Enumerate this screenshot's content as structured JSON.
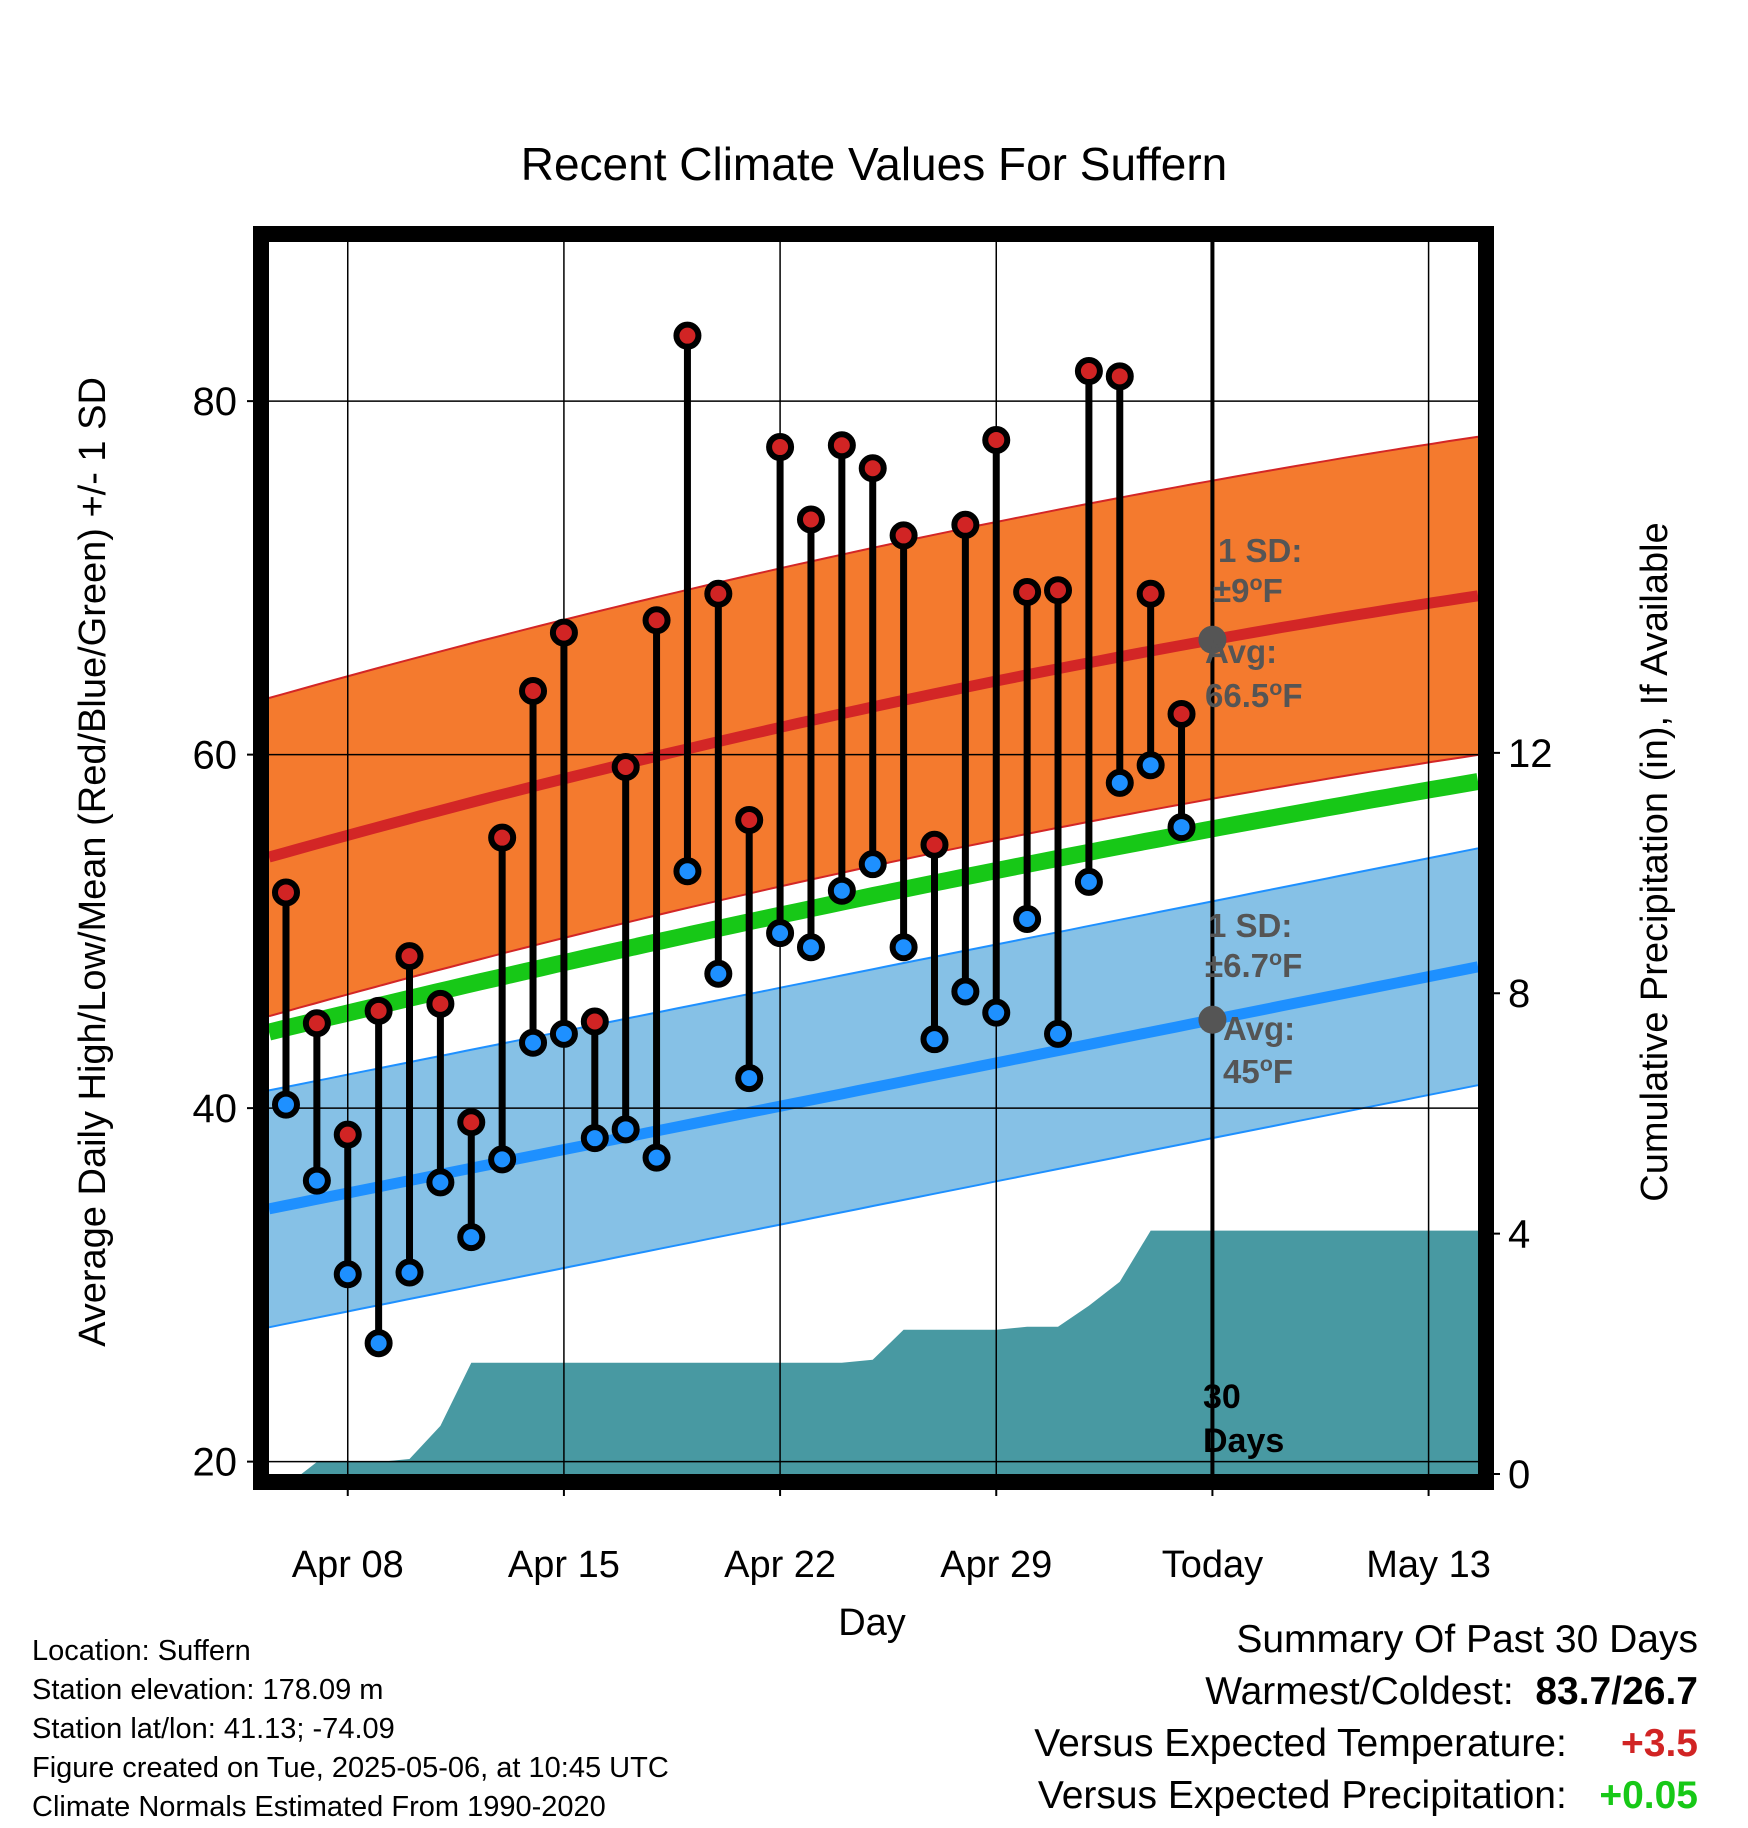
{
  "chart_data": {
    "type": "line",
    "title": "Recent Climate Values For Suffern",
    "xlabel": "Day",
    "ylabel": "Average Daily High/Low/Mean (Red/Blue/Green) +/- 1 SD",
    "y2label": "Cumulative Precipitation (in), If Available",
    "ylim": [
      19.3,
      89
    ],
    "y2lim": [
      0,
      20.5
    ],
    "yticks": [
      "20",
      "40",
      "60",
      "80"
    ],
    "y2ticks": [
      "0",
      "4",
      "8",
      "12"
    ],
    "x_tick_labels": [
      "Apr 08",
      "Apr 15",
      "Apr 22",
      "Apr 29",
      "Today",
      "May 13"
    ],
    "x_tick_days": [
      2,
      9,
      16,
      23,
      30,
      37
    ],
    "xlim": [
      -0.55,
      38.6
    ],
    "today_day": 30,
    "today_label_line1": "30",
    "today_label_line2": "Days",
    "grid": true,
    "daily_highs": [
      52.2,
      44.8,
      38.5,
      45.5,
      48.6,
      45.9,
      39.2,
      55.3,
      63.6,
      66.9,
      44.9,
      59.3,
      67.6,
      83.7,
      69.1,
      56.3,
      77.4,
      73.3,
      77.5,
      76.2,
      72.4,
      54.9,
      73.0,
      77.8,
      69.2,
      69.3,
      81.7,
      81.4,
      69.1,
      62.3
    ],
    "daily_lows": [
      40.2,
      35.9,
      30.6,
      26.7,
      30.7,
      35.8,
      32.7,
      37.1,
      43.7,
      44.2,
      38.3,
      38.8,
      37.2,
      53.4,
      47.6,
      41.7,
      49.9,
      49.1,
      52.3,
      53.8,
      49.1,
      43.9,
      46.6,
      45.4,
      50.7,
      44.2,
      52.8,
      58.4,
      59.4,
      55.9
    ],
    "normal_high": {
      "name": "Avg: 66.5°F",
      "start": 54.2,
      "today": 66.5,
      "end": 69.2
    },
    "normal_low": {
      "name": "Avg: 45°F",
      "start": 34.3,
      "today": 45.0,
      "end": 48.0
    },
    "normal_mean": {
      "start": 44.3,
      "today": 55.8,
      "end": 58.6
    },
    "high_sd": 9.0,
    "low_sd": 6.7,
    "annotations": {
      "high_sd_line1": "1 SD:",
      "high_sd_line2": "±9°F",
      "high_avg_line1": "Avg:",
      "high_avg_line2": "66.5°F",
      "low_sd_line1": "1 SD:",
      "low_sd_line2": "±6.7°F",
      "low_avg_line1": "Avg:",
      "low_avg_line2": "45°F"
    },
    "precip_x": [
      0,
      0.5,
      1,
      2,
      3,
      4,
      5,
      6,
      7,
      8,
      9,
      10,
      11,
      12,
      13,
      14,
      15,
      16,
      17,
      18,
      19,
      20,
      21,
      22,
      23,
      24,
      25,
      26,
      27,
      28,
      29,
      30,
      38.6
    ],
    "precip_cum": [
      0,
      0,
      0.2,
      0.2,
      0.2,
      0.25,
      0.8,
      1.85,
      1.85,
      1.85,
      1.85,
      1.85,
      1.85,
      1.85,
      1.85,
      1.85,
      1.85,
      1.85,
      1.85,
      1.85,
      1.9,
      2.4,
      2.4,
      2.4,
      2.4,
      2.45,
      2.45,
      2.8,
      3.2,
      4.05,
      4.05,
      4.05,
      4.05
    ],
    "colors": {
      "high_dot": "#d12424",
      "low_dot": "#1e90ff",
      "high_band": "#f47a2e",
      "high_band_edge": "#d32626",
      "high_line": "#d32626",
      "low_band": "#86c1e6",
      "low_band_edge": "#1e90ff",
      "low_line": "#1e90ff",
      "mean_line": "#17c817",
      "precip": "#4899a2",
      "annotation": "#555555"
    }
  },
  "info": {
    "location": "Location: Suffern",
    "elevation": "Station elevation: 178.09 m",
    "latlon": "Station lat/lon: 41.13; -74.09",
    "created": "Figure created on Tue, 2025-05-06, at 10:45 UTC",
    "normals": "Climate Normals Estimated From 1990-2020"
  },
  "summary": {
    "title": "Summary Of Past 30 Days",
    "warm_cold_label": "Warmest/Coldest:",
    "warm_cold_value": "83.7/26.7",
    "temp_label": "Versus Expected Temperature:",
    "temp_value": "+3.5",
    "temp_color": "#d12424",
    "precip_label": "Versus Expected Precipitation:",
    "precip_value": "+0.05",
    "precip_color": "#17c817"
  }
}
